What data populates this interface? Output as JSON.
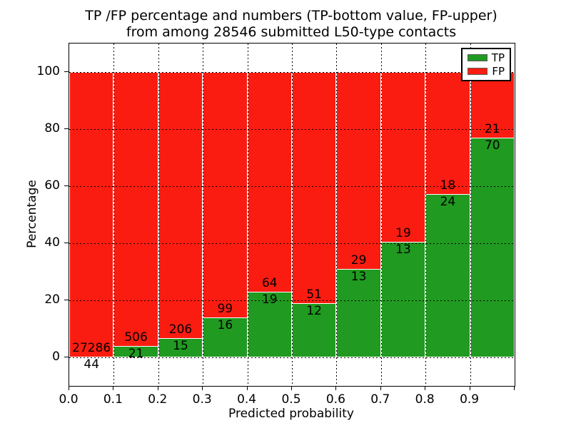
{
  "title": {
    "line1": "TP /FP percentage and numbers (TP-bottom value, FP-upper)",
    "line2": "from among 28546 submitted L50-type contacts"
  },
  "axes": {
    "xlabel": "Predicted probability",
    "ylabel": "Percentage",
    "x_ticks": [
      "0.0",
      "0.1",
      "0.2",
      "0.3",
      "0.4",
      "0.5",
      "0.6",
      "0.7",
      "0.8",
      "0.9"
    ],
    "y_ticks": [
      "0",
      "20",
      "40",
      "60",
      "80",
      "100"
    ],
    "y_tick_values": [
      0,
      20,
      40,
      60,
      80,
      100
    ],
    "xlim": [
      0.0,
      1.0
    ],
    "ylim": [
      -10,
      110
    ],
    "grid": "dotted black, drawn above bars"
  },
  "legend": {
    "position": "upper right",
    "items": [
      {
        "label": "TP",
        "color": "#209a20"
      },
      {
        "label": "FP",
        "color": "#fa1c10"
      }
    ]
  },
  "chart_data": {
    "type": "bar",
    "stacked": true,
    "normalized": "each bin scaled to 100%",
    "bin_edges": [
      0.0,
      0.1,
      0.2,
      0.3,
      0.4,
      0.5,
      0.6,
      0.7,
      0.8,
      0.9,
      1.0
    ],
    "categories": [
      "0.0-0.1",
      "0.1-0.2",
      "0.2-0.3",
      "0.3-0.4",
      "0.4-0.5",
      "0.5-0.6",
      "0.6-0.7",
      "0.7-0.8",
      "0.8-0.9",
      "0.9-1.0"
    ],
    "series": [
      {
        "name": "TP",
        "color": "#209a20",
        "counts": [
          44,
          21,
          15,
          16,
          19,
          12,
          13,
          13,
          24,
          70
        ]
      },
      {
        "name": "FP",
        "color": "#fa1c10",
        "counts": [
          27286,
          506,
          206,
          99,
          64,
          51,
          29,
          19,
          18,
          21
        ]
      }
    ],
    "tp_percent": [
      0.16,
      3.98,
      6.79,
      13.91,
      22.89,
      19.05,
      30.95,
      40.63,
      57.14,
      76.92
    ],
    "total_submitted": 28546,
    "title": "TP /FP percentage and numbers (TP-bottom value, FP-upper) from among 28546 submitted L50-type contacts",
    "xlabel": "Predicted probability",
    "ylabel": "Percentage",
    "annotation_rule": "TP count printed below the TP/FP boundary, FP count printed above it"
  }
}
